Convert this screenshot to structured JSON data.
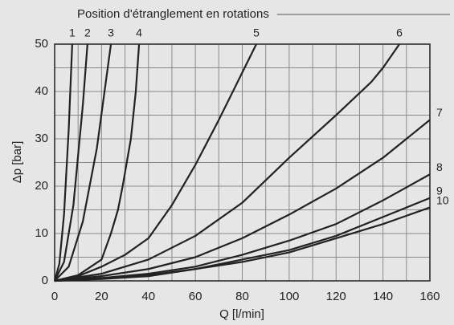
{
  "chart_data": {
    "type": "line",
    "title": "Position d'étranglement en rotations",
    "xlabel": "Q [l/min]",
    "ylabel": "Δp [bar]",
    "xlim": [
      0,
      160
    ],
    "ylim": [
      0,
      50
    ],
    "xticks": [
      0,
      20,
      40,
      60,
      80,
      100,
      120,
      140,
      160
    ],
    "yticks": [
      0,
      10,
      20,
      30,
      40,
      50
    ],
    "xminor": [
      10,
      30,
      50,
      70,
      90,
      110,
      130,
      150
    ],
    "yminor": [
      5,
      15,
      25,
      35,
      45
    ],
    "grid": true,
    "color": "#222222",
    "series": [
      {
        "name": "1",
        "x": [
          0,
          2,
          4,
          6,
          7.5
        ],
        "values": [
          0,
          3.6,
          14,
          32,
          50
        ]
      },
      {
        "name": "2",
        "x": [
          0,
          4,
          8,
          12,
          14
        ],
        "values": [
          0,
          4,
          16,
          37,
          50
        ]
      },
      {
        "name": "3",
        "x": [
          0,
          6,
          12,
          18,
          24
        ],
        "values": [
          0,
          3,
          12.5,
          28,
          50
        ]
      },
      {
        "name": "4",
        "x": [
          0,
          10,
          20,
          24,
          27,
          29,
          32.5,
          34.6,
          36
        ],
        "values": [
          0,
          1.2,
          4.5,
          10,
          15,
          20,
          30,
          40,
          50
        ]
      },
      {
        "name": "5",
        "x": [
          0,
          10,
          20,
          30,
          40,
          50,
          60,
          70,
          80,
          86
        ],
        "values": [
          0,
          1,
          3,
          5.5,
          9,
          16,
          24.5,
          34,
          44,
          50
        ]
      },
      {
        "name": "6",
        "x": [
          0,
          20,
          40,
          60,
          80,
          100,
          120,
          135,
          140,
          147
        ],
        "values": [
          0,
          1.5,
          4.5,
          9.5,
          16.5,
          26,
          35,
          42,
          45,
          50
        ]
      },
      {
        "name": "7",
        "x": [
          0,
          20,
          40,
          60,
          80,
          100,
          120,
          140,
          160
        ],
        "values": [
          0,
          1,
          2.5,
          5,
          9,
          14,
          19.5,
          26,
          34
        ]
      },
      {
        "name": "8",
        "x": [
          0,
          20,
          40,
          60,
          80,
          100,
          120,
          140,
          160
        ],
        "values": [
          0,
          0.6,
          1.5,
          3,
          5.5,
          8.5,
          12,
          17,
          22.5
        ]
      },
      {
        "name": "9",
        "x": [
          0,
          20,
          40,
          60,
          80,
          100,
          120,
          140,
          160
        ],
        "values": [
          0,
          0.5,
          1.2,
          2.5,
          4.5,
          6.5,
          9.5,
          13.5,
          17.5
        ]
      },
      {
        "name": "10",
        "x": [
          0,
          20,
          40,
          60,
          80,
          100,
          120,
          140,
          160
        ],
        "values": [
          0,
          0.4,
          1,
          2.5,
          4,
          6,
          9,
          12,
          15.5
        ]
      }
    ]
  }
}
